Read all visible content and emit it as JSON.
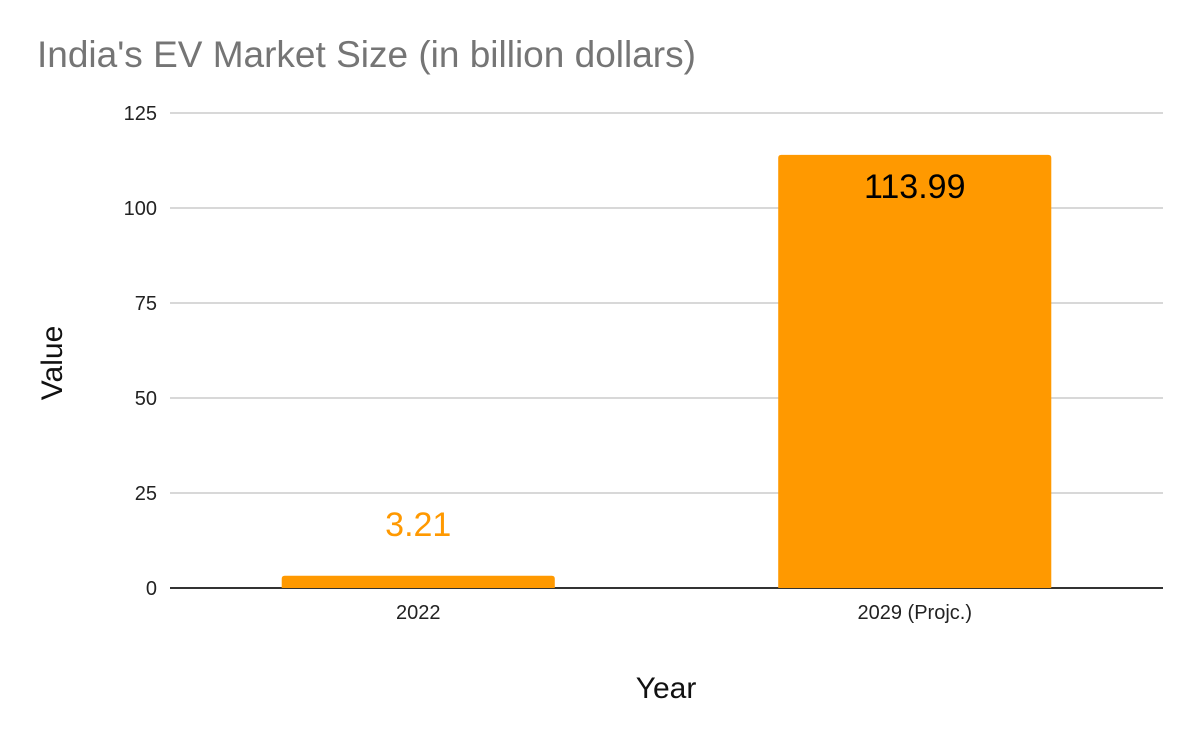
{
  "chart_data": {
    "type": "bar",
    "title": "India's EV Market Size (in billion dollars)",
    "xlabel": "Year",
    "ylabel": "Value",
    "categories": [
      "2022",
      "2029 (Projc.)"
    ],
    "values": [
      3.21,
      113.99
    ],
    "data_labels": [
      "3.21",
      "113.99"
    ],
    "ylim": [
      0,
      125
    ],
    "yticks": [
      0,
      25,
      50,
      75,
      100,
      125
    ],
    "grid": true,
    "legend": "none",
    "colors": {
      "bar": "#FF9900",
      "label_outside": "#FF9900",
      "label_inside": "#000000",
      "gridline": "#CCCCCC",
      "baseline": "#333333"
    }
  }
}
